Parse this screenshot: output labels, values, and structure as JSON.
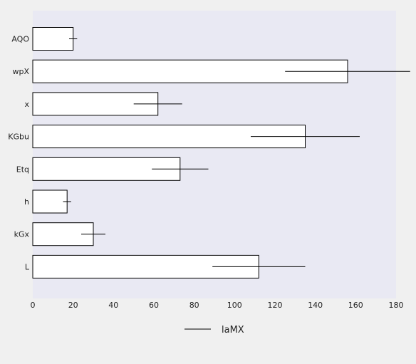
{
  "chart_data": {
    "type": "bar",
    "orientation": "horizontal",
    "categories": [
      "AQO",
      "wpX",
      "x",
      "KGbu",
      "Etq",
      "h",
      "kGx",
      "L"
    ],
    "series": [
      {
        "name": "laMX",
        "values": [
          20,
          156,
          62,
          135,
          73,
          17,
          30,
          112
        ],
        "errors": [
          2,
          31,
          12,
          27,
          14,
          2,
          6,
          23
        ]
      }
    ],
    "xlim": [
      0,
      180
    ],
    "xticks": [
      "0",
      "20",
      "40",
      "60",
      "80",
      "100",
      "120",
      "140",
      "160",
      "180"
    ],
    "title": "",
    "xlabel": "",
    "ylabel": "",
    "grid": false,
    "legend": {
      "placement": "bottom-center"
    },
    "colors": {
      "plot_background": "#e9e9f3",
      "page_background": "#f0f0f0",
      "bar_fill": "#ffffff",
      "bar_stroke": "#000000",
      "error_bar": "#000000"
    }
  }
}
